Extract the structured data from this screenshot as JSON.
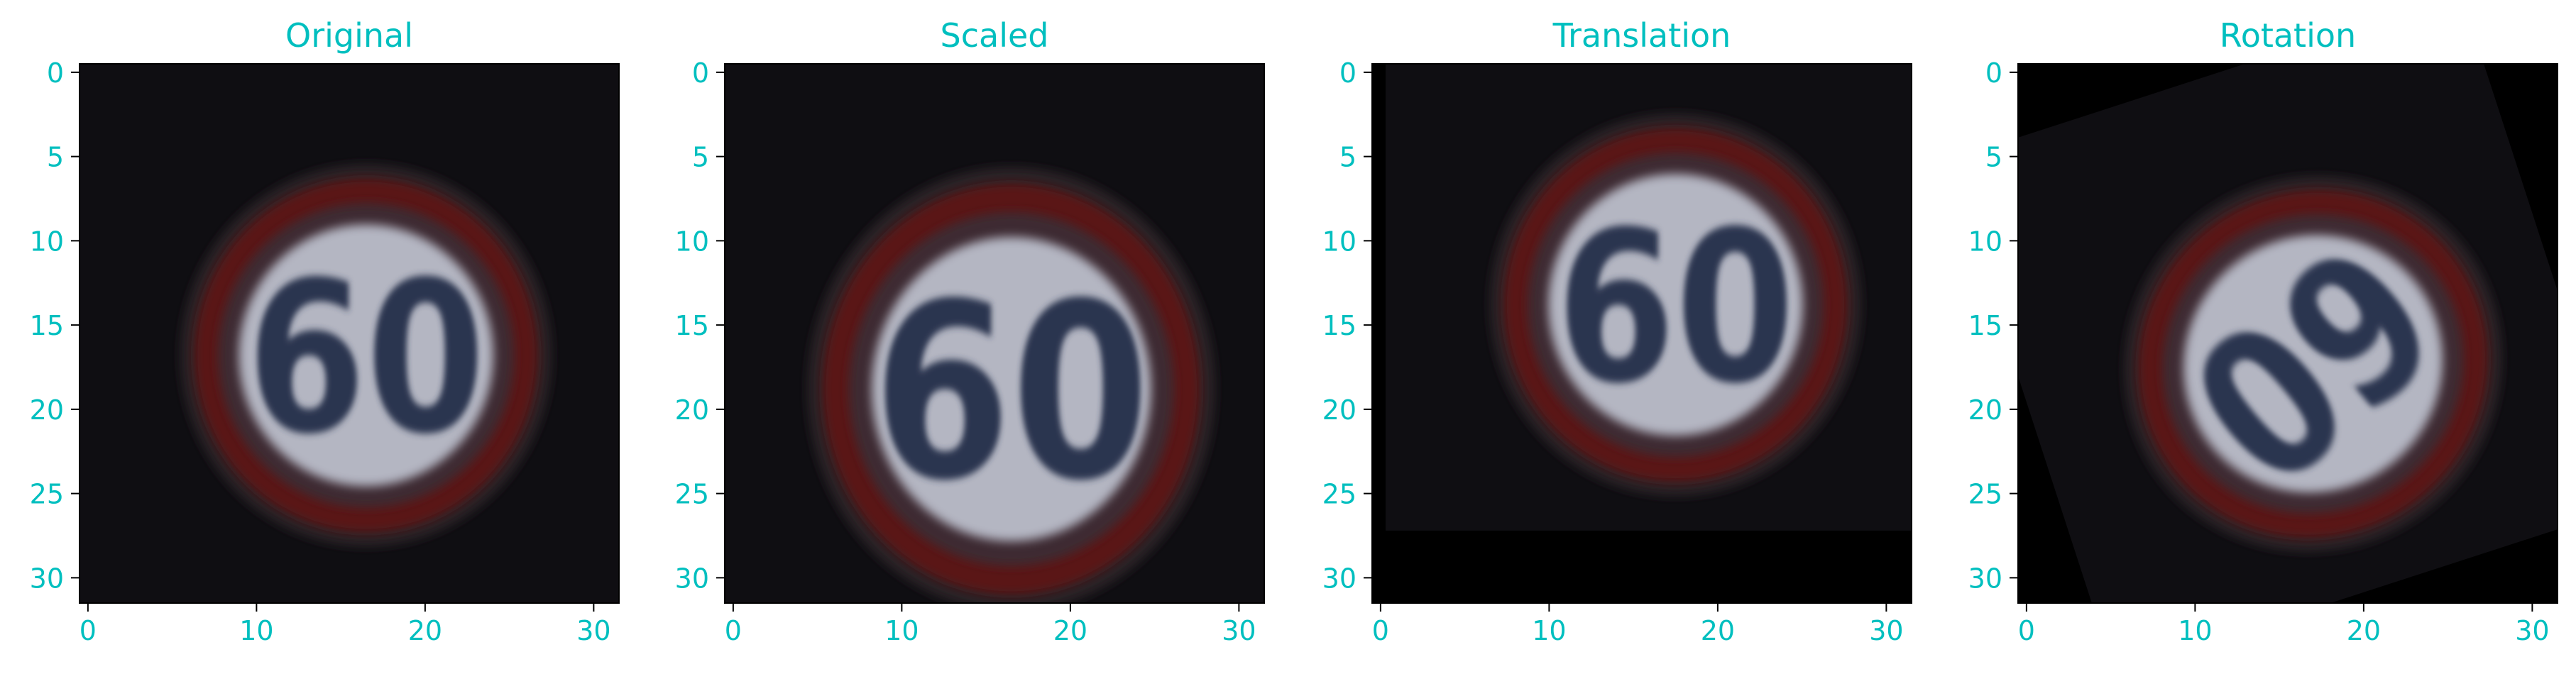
{
  "figure": {
    "text_color": "#00BFBF",
    "panels": [
      {
        "title": "Original",
        "variant": "original",
        "xticks": [
          "0",
          "10",
          "20",
          "30"
        ],
        "yticks": [
          "0",
          "5",
          "10",
          "15",
          "20",
          "25",
          "30"
        ]
      },
      {
        "title": "Scaled",
        "variant": "scaled",
        "xticks": [
          "0",
          "10",
          "20",
          "30"
        ],
        "yticks": [
          "0",
          "5",
          "10",
          "15",
          "20",
          "25",
          "30"
        ]
      },
      {
        "title": "Translation",
        "variant": "translation",
        "xticks": [
          "0",
          "10",
          "20",
          "30"
        ],
        "yticks": [
          "0",
          "5",
          "10",
          "15",
          "20",
          "25",
          "30"
        ]
      },
      {
        "title": "Rotation",
        "variant": "rotation",
        "xticks": [
          "0",
          "10",
          "20",
          "30"
        ],
        "yticks": [
          "0",
          "5",
          "10",
          "15",
          "20",
          "25",
          "30"
        ]
      }
    ],
    "sign": {
      "label": "60",
      "ring_color": "#5a1318",
      "face_color": "#b4b6c2",
      "digit_color": "#2b3550",
      "background_color": "#0f0e12"
    }
  }
}
